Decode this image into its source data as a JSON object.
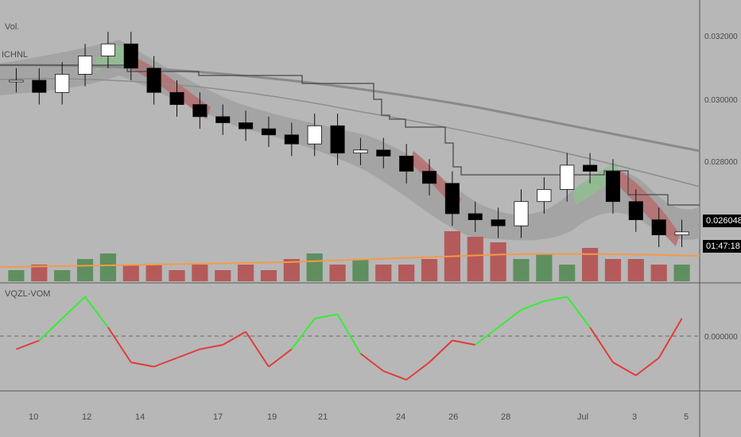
{
  "indicators": {
    "volume_label": "Vol.",
    "channel_label": "ICHNL",
    "oscillator_label": "VQZL-VOM"
  },
  "price_axis": {
    "ticks": [
      "0.032000",
      "0.030000",
      "0.028000"
    ],
    "last_price": "0.026048",
    "countdown": "01:47:18"
  },
  "osc_axis": {
    "ticks": [
      "0.000000"
    ]
  },
  "time_axis": {
    "ticks": [
      "10",
      "12",
      "14",
      "17",
      "19",
      "21",
      "24",
      "26",
      "28",
      "Jul",
      "3",
      "5"
    ]
  },
  "colors": {
    "background": "#b7b7b7",
    "up_candle": "#ffffff",
    "down_candle": "#000000",
    "bull_band": "#8fbf8f",
    "bear_band": "#b56a6a",
    "vol_up": "#5f8f5f",
    "vol_down": "#b55a5a",
    "osc_up": "#33ee33",
    "osc_down": "#e23a3a",
    "vol_ma": "#f39a4a"
  },
  "chart_data": [
    {
      "type": "candlestick",
      "title": "",
      "price_axis_ticks": [
        0.032,
        0.03,
        0.028
      ],
      "last_price": 0.026048,
      "close_series": [
        0.031,
        0.0306,
        0.0312,
        0.0318,
        0.0322,
        0.0314,
        0.0306,
        0.0302,
        0.0298,
        0.0296,
        0.0294,
        0.0292,
        0.0289,
        0.0295,
        0.0286,
        0.0287,
        0.0285,
        0.028,
        0.0276,
        0.0266,
        0.0264,
        0.0262,
        0.027,
        0.0274,
        0.0282,
        0.028,
        0.027,
        0.0264,
        0.0259,
        0.026
      ]
    },
    {
      "type": "bar",
      "title": "Vol.",
      "values": [
        2,
        3,
        2,
        4,
        5,
        3,
        3,
        2,
        3,
        2,
        3,
        2,
        4,
        5,
        3,
        4,
        3,
        3,
        4,
        9,
        8,
        7,
        4,
        5,
        3,
        6,
        4,
        4,
        3,
        3
      ]
    },
    {
      "type": "line",
      "title": "VQZL-VOM",
      "zero_line": 0.0,
      "values": [
        -0.3,
        -0.1,
        0.4,
        0.9,
        0.2,
        -0.6,
        -0.7,
        -0.5,
        -0.3,
        -0.2,
        0.1,
        -0.7,
        -0.3,
        0.4,
        0.5,
        -0.4,
        -0.8,
        -1.0,
        -0.6,
        -0.1,
        -0.2,
        0.2,
        0.6,
        0.8,
        0.9,
        0.2,
        -0.6,
        -0.9,
        -0.5,
        0.4
      ]
    }
  ]
}
